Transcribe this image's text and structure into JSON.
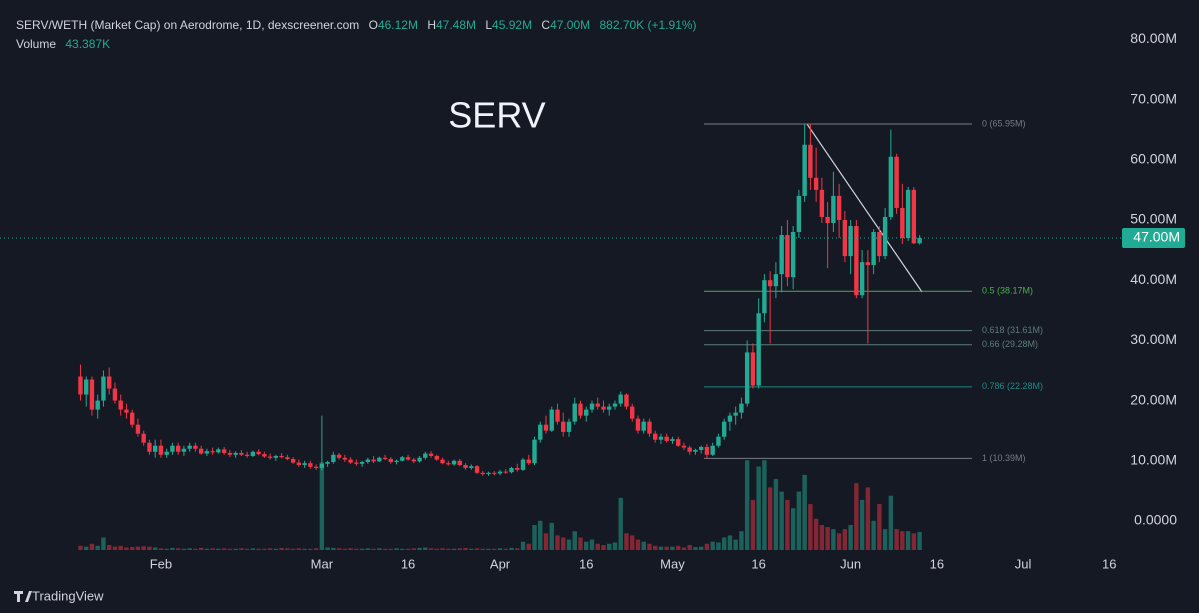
{
  "chart_data": {
    "type": "candlestick",
    "header": {
      "symbol": "SERV/WETH (Market Cap) on Aerodrome, 1D, dexscreener.com",
      "ohlc": [
        {
          "key": "O",
          "value": "46.12M"
        },
        {
          "key": "H",
          "value": "47.48M"
        },
        {
          "key": "L",
          "value": "45.92M"
        },
        {
          "key": "C",
          "value": "47.00M"
        }
      ],
      "change": "882.70K (+1.91%)",
      "volume_label": "Volume",
      "volume_value": "43.387K"
    },
    "watermark": "SERV",
    "brand": "TradingView",
    "up_color": "#22ab94",
    "down_color": "#f23645",
    "ylim": [
      -4.82,
      86.54
    ],
    "yticks": [
      {
        "value": 80,
        "label": "80.00M"
      },
      {
        "value": 70,
        "label": "70.00M"
      },
      {
        "value": 60,
        "label": "60.00M"
      },
      {
        "value": 50,
        "label": "50.00M"
      },
      {
        "value": 40,
        "label": "40.00M"
      },
      {
        "value": 30,
        "label": "30.00M"
      },
      {
        "value": 20,
        "label": "20.00M"
      },
      {
        "value": 10,
        "label": "10.00M"
      },
      {
        "value": 0,
        "label": "0.0000"
      }
    ],
    "xlim": [
      "Jan 4",
      "Jul 17"
    ],
    "xticks": [
      {
        "value": "Feb 1",
        "label": "Feb"
      },
      {
        "value": "Mar 1",
        "label": "Mar"
      },
      {
        "value": "Mar 16",
        "label": "16"
      },
      {
        "value": "Apr 1",
        "label": "Apr"
      },
      {
        "value": "Apr 16",
        "label": "16"
      },
      {
        "value": "May 1",
        "label": "May"
      },
      {
        "value": "May 16",
        "label": "16"
      },
      {
        "value": "Jun 1",
        "label": "Jun"
      },
      {
        "value": "Jun 16",
        "label": "16"
      },
      {
        "value": "Jul 1",
        "label": "Jul"
      },
      {
        "value": "Jul 16",
        "label": "16"
      }
    ],
    "grid": false,
    "volume_lim": [
      0,
      230
    ],
    "last_price": {
      "value": 47.0,
      "label": "47.00M",
      "color": "#22ab94"
    },
    "fib_levels": [
      {
        "label": "0 (65.95M)",
        "value": 65.95,
        "color": "#787b86"
      },
      {
        "label": "0.5 (38.17M)",
        "value": 38.17,
        "color": "#4caf50"
      },
      {
        "label": "0.618 (31.61M)",
        "value": 31.61,
        "color": "#5d7d77"
      },
      {
        "label": "0.66 (29.28M)",
        "value": 29.28,
        "color": "#5d7d77"
      },
      {
        "label": "0.786 (22.28M)",
        "value": 22.28,
        "color": "#1e8a86"
      },
      {
        "label": "1 (10.39M)",
        "value": 10.39,
        "color": "#787b86"
      }
    ],
    "candles": [
      [
        "Jan 18",
        24,
        26,
        20,
        21,
        10
      ],
      [
        "Jan 19",
        21,
        24,
        19,
        23.5,
        8
      ],
      [
        "Jan 20",
        23.5,
        24,
        17.5,
        18.5,
        15
      ],
      [
        "Jan 21",
        18.5,
        21,
        17,
        20,
        10
      ],
      [
        "Jan 22",
        20,
        25,
        19,
        24,
        30
      ],
      [
        "Jan 23",
        24,
        25.5,
        21,
        22,
        12
      ],
      [
        "Jan 24",
        22,
        23,
        19.5,
        20,
        8
      ],
      [
        "Jan 25",
        20,
        21,
        17.5,
        18.5,
        10
      ],
      [
        "Jan 26",
        18.5,
        19.5,
        17,
        18,
        6
      ],
      [
        "Jan 27",
        18,
        18.5,
        15.5,
        16,
        7
      ],
      [
        "Jan 28",
        16,
        17,
        14,
        14.5,
        8
      ],
      [
        "Jan 29",
        14.5,
        15,
        12.5,
        13,
        9
      ],
      [
        "Jan 30",
        13,
        13.5,
        11,
        11.5,
        8
      ],
      [
        "Jan 31",
        11.5,
        13.5,
        10.5,
        12.5,
        6
      ],
      [
        "Feb 1",
        12.5,
        13.5,
        10.5,
        11,
        4
      ],
      [
        "Feb 2",
        11,
        12,
        10.5,
        11.5,
        3
      ],
      [
        "Feb 3",
        11.5,
        13,
        11,
        12.5,
        5
      ],
      [
        "Feb 4",
        12.5,
        13,
        11,
        11.5,
        4
      ],
      [
        "Feb 5",
        11.5,
        12.5,
        10.8,
        12,
        3
      ],
      [
        "Feb 6",
        12,
        13,
        11.5,
        12.5,
        4
      ],
      [
        "Feb 7",
        12.5,
        13,
        11.5,
        12,
        3
      ],
      [
        "Feb 8",
        12,
        12.5,
        11,
        11.2,
        5
      ],
      [
        "Feb 9",
        11.2,
        12,
        10.8,
        11.6,
        3
      ],
      [
        "Feb 10",
        11.6,
        12.2,
        11,
        11.4,
        4
      ],
      [
        "Feb 11",
        11.4,
        12.2,
        11.2,
        11.9,
        3
      ],
      [
        "Feb 12",
        11.9,
        12.3,
        11,
        11.3,
        4
      ],
      [
        "Feb 13",
        11.3,
        11.8,
        10.6,
        11,
        3
      ],
      [
        "Feb 14",
        11,
        11.6,
        10.5,
        11.3,
        3
      ],
      [
        "Feb 15",
        11.3,
        11.8,
        10.8,
        11,
        4
      ],
      [
        "Feb 16",
        11,
        11.5,
        10.5,
        10.8,
        3
      ],
      [
        "Feb 17",
        10.8,
        11.7,
        10.6,
        11.5,
        4
      ],
      [
        "Feb 18",
        11.5,
        11.9,
        10.9,
        11.1,
        3
      ],
      [
        "Feb 19",
        11.1,
        11.5,
        10.5,
        10.7,
        3
      ],
      [
        "Feb 20",
        10.7,
        11.2,
        10.2,
        10.5,
        4
      ],
      [
        "Feb 21",
        10.5,
        11,
        10,
        10.8,
        3
      ],
      [
        "Feb 22",
        10.8,
        11.3,
        10.4,
        10.6,
        5
      ],
      [
        "Feb 23",
        10.6,
        11,
        10.1,
        10.3,
        4
      ],
      [
        "Feb 24",
        10.3,
        10.6,
        9.5,
        9.7,
        3
      ],
      [
        "Feb 25",
        9.7,
        10.2,
        9,
        9.3,
        4
      ],
      [
        "Feb 26",
        9.3,
        10,
        8.8,
        9.6,
        3
      ],
      [
        "Feb 27",
        9.6,
        10,
        8.7,
        9,
        3
      ],
      [
        "Feb 28",
        9,
        9.4,
        8.5,
        8.8,
        4
      ],
      [
        "Mar 1",
        8.8,
        17.5,
        8.4,
        9.5,
        210
      ],
      [
        "Mar 2",
        9.5,
        10,
        9,
        9.8,
        6
      ],
      [
        "Mar 3",
        9.8,
        11.5,
        9.5,
        11,
        5
      ],
      [
        "Mar 4",
        11,
        11.3,
        10.2,
        10.5,
        4
      ],
      [
        "Mar 5",
        10.5,
        11,
        9.8,
        10.2,
        3
      ],
      [
        "Mar 6",
        10.2,
        10.6,
        9.5,
        9.7,
        4
      ],
      [
        "Mar 7",
        9.7,
        10.2,
        9.2,
        9.5,
        3
      ],
      [
        "Mar 8",
        9.5,
        10,
        9,
        9.8,
        3
      ],
      [
        "Mar 9",
        9.8,
        10.5,
        9.5,
        10.2,
        4
      ],
      [
        "Mar 10",
        10.2,
        10.8,
        9.6,
        9.9,
        3
      ],
      [
        "Mar 11",
        9.9,
        10.7,
        9.8,
        10.5,
        4
      ],
      [
        "Mar 12",
        10.5,
        11,
        10.1,
        10.3,
        3
      ],
      [
        "Mar 13",
        10.3,
        10.6,
        9.5,
        9.8,
        3
      ],
      [
        "Mar 14",
        9.8,
        10.2,
        9.4,
        10,
        4
      ],
      [
        "Mar 15",
        10,
        10.8,
        9.9,
        10.6,
        3
      ],
      [
        "Mar 16",
        10.6,
        11,
        10,
        10.2,
        3
      ],
      [
        "Mar 17",
        10.2,
        10.5,
        9.6,
        9.9,
        4
      ],
      [
        "Mar 18",
        9.9,
        10.8,
        9.7,
        10.5,
        5
      ],
      [
        "Mar 19",
        10.5,
        11.5,
        10.2,
        11.2,
        6
      ],
      [
        "Mar 20",
        11.2,
        11.6,
        10.5,
        10.8,
        4
      ],
      [
        "Mar 21",
        10.8,
        11,
        10,
        10.2,
        3
      ],
      [
        "Mar 22",
        10.2,
        10.5,
        9.4,
        9.6,
        4
      ],
      [
        "Mar 23",
        9.6,
        10,
        9.2,
        9.4,
        3
      ],
      [
        "Mar 24",
        9.4,
        10.2,
        9.2,
        10,
        3
      ],
      [
        "Mar 25",
        10,
        10.3,
        9.1,
        9.3,
        4
      ],
      [
        "Mar 26",
        9.3,
        9.6,
        8.5,
        8.8,
        5
      ],
      [
        "Mar 27",
        8.8,
        9.4,
        8.5,
        9.1,
        3
      ],
      [
        "Mar 28",
        9.1,
        9.3,
        7.8,
        8,
        4
      ],
      [
        "Mar 29",
        8,
        8.3,
        7.5,
        7.8,
        3
      ],
      [
        "Mar 30",
        7.8,
        8.2,
        7.5,
        8,
        3
      ],
      [
        "Mar 31",
        8,
        8.3,
        7.6,
        7.9,
        3
      ],
      [
        "Apr 1",
        7.9,
        8.5,
        7.6,
        8.2,
        4
      ],
      [
        "Apr 2",
        8.2,
        8.6,
        7.8,
        8.1,
        3
      ],
      [
        "Apr 3",
        8.1,
        9,
        7.9,
        8.8,
        5
      ],
      [
        "Apr 4",
        8.8,
        9.5,
        8.2,
        8.5,
        4
      ],
      [
        "Apr 5",
        8.5,
        10.5,
        8.3,
        10.2,
        20
      ],
      [
        "Apr 6",
        10.2,
        11,
        9.3,
        9.6,
        15
      ],
      [
        "Apr 7",
        9.6,
        14,
        9.3,
        13.5,
        60
      ],
      [
        "Apr 8",
        13.5,
        16.5,
        13,
        16,
        70
      ],
      [
        "Apr 9",
        16,
        17.5,
        14.5,
        15,
        40
      ],
      [
        "Apr 10",
        15,
        19,
        14.8,
        18.5,
        65
      ],
      [
        "Apr 11",
        18.5,
        19.5,
        16,
        16.5,
        35
      ],
      [
        "Apr 12",
        16.5,
        18,
        14,
        14.8,
        30
      ],
      [
        "Apr 13",
        14.8,
        17,
        14,
        16.5,
        25
      ],
      [
        "Apr 14",
        16.5,
        20.5,
        16,
        19.5,
        45
      ],
      [
        "Apr 15",
        19.5,
        20,
        17,
        17.5,
        30
      ],
      [
        "Apr 16",
        17.5,
        19,
        16.5,
        18.5,
        20
      ],
      [
        "Apr 17",
        18.5,
        20,
        18,
        19.5,
        25
      ],
      [
        "Apr 18",
        19.5,
        20.5,
        18.5,
        19,
        15
      ],
      [
        "Apr 19",
        19,
        20,
        18,
        18.5,
        12
      ],
      [
        "Apr 20",
        18.5,
        19.5,
        17.5,
        19,
        15
      ],
      [
        "Apr 21",
        19,
        20,
        18.5,
        19.5,
        18
      ],
      [
        "Apr 22",
        19.5,
        21.5,
        19,
        21,
        125
      ],
      [
        "Apr 23",
        21,
        21.2,
        18.5,
        19,
        40
      ],
      [
        "Apr 24",
        19,
        19.5,
        16.5,
        17,
        35
      ],
      [
        "Apr 25",
        17,
        17.5,
        14.5,
        15,
        25
      ],
      [
        "Apr 26",
        15,
        17,
        14.5,
        16.5,
        20
      ],
      [
        "Apr 27",
        16.5,
        17,
        14,
        14.5,
        15
      ],
      [
        "Apr 28",
        14.5,
        15,
        13,
        13.5,
        10
      ],
      [
        "Apr 29",
        13.5,
        14.5,
        12.8,
        14,
        8
      ],
      [
        "Apr 30",
        14,
        14.5,
        13,
        13.3,
        8
      ],
      [
        "May 1",
        13.3,
        14,
        12.8,
        13.6,
        8
      ],
      [
        "May 2",
        13.6,
        14,
        12.3,
        12.5,
        10
      ],
      [
        "May 3",
        12.5,
        13,
        11.8,
        12.2,
        6
      ],
      [
        "May 4",
        12.2,
        12.5,
        11,
        11.5,
        12
      ],
      [
        "May 5",
        11.5,
        12,
        11,
        11.8,
        7
      ],
      [
        "May 6",
        11.8,
        12.5,
        11.2,
        12.3,
        8
      ],
      [
        "May 7",
        12.3,
        12.8,
        10.4,
        11,
        15
      ],
      [
        "May 8",
        11,
        13,
        10.8,
        12.5,
        20
      ],
      [
        "May 9",
        12.5,
        14.5,
        12.2,
        14,
        18
      ],
      [
        "May 10",
        14,
        17,
        13.5,
        16.5,
        30
      ],
      [
        "May 11",
        16.5,
        18,
        15,
        17.5,
        35
      ],
      [
        "May 12",
        17.5,
        19,
        16,
        18,
        25
      ],
      [
        "May 13",
        18,
        20.5,
        17,
        19.5,
        45
      ],
      [
        "May 14",
        19.5,
        30,
        19,
        28,
        215
      ],
      [
        "May 15",
        28,
        29.5,
        22,
        22.5,
        120
      ],
      [
        "May 16",
        22.5,
        37,
        22,
        34.5,
        200
      ],
      [
        "May 17",
        34.5,
        41,
        33,
        40,
        215
      ],
      [
        "May 18",
        40,
        41.5,
        29.5,
        39,
        150
      ],
      [
        "May 19",
        39,
        43,
        37,
        41,
        170
      ],
      [
        "May 20",
        41,
        49,
        38,
        47.5,
        140
      ],
      [
        "May 21",
        47.5,
        50,
        39,
        40.5,
        120
      ],
      [
        "May 22",
        40.5,
        49,
        38.5,
        48,
        100
      ],
      [
        "May 23",
        48,
        55,
        47,
        54,
        140
      ],
      [
        "May 24",
        54,
        66,
        53,
        62.5,
        180
      ],
      [
        "May 25",
        62.5,
        66,
        55,
        57,
        110
      ],
      [
        "May 26",
        57,
        62,
        53,
        55,
        75
      ],
      [
        "May 27",
        55,
        57,
        49.5,
        50.5,
        60
      ],
      [
        "May 28",
        50.5,
        53,
        42,
        49.5,
        55
      ],
      [
        "May 29",
        49.5,
        58,
        48,
        54,
        50
      ],
      [
        "May 30",
        54,
        56,
        47,
        50,
        40
      ],
      [
        "May 31",
        50,
        51.5,
        43,
        44,
        50
      ],
      [
        "Jun 1",
        44,
        50,
        41,
        49,
        60
      ],
      [
        "Jun 2",
        49,
        50,
        37,
        37.5,
        160
      ],
      [
        "Jun 3",
        37.5,
        45,
        37,
        43,
        120
      ],
      [
        "Jun 4",
        43,
        45,
        29.5,
        42.5,
        150
      ],
      [
        "Jun 5",
        42.5,
        48.5,
        41,
        48,
        70
      ],
      [
        "Jun 6",
        48,
        49,
        43,
        44,
        110
      ],
      [
        "Jun 7",
        44,
        52,
        43.5,
        50.5,
        50
      ],
      [
        "Jun 8",
        50.5,
        65,
        50,
        60.5,
        130
      ],
      [
        "Jun 9",
        60.5,
        61,
        51,
        52,
        50
      ],
      [
        "Jun 10",
        52,
        56,
        46,
        47,
        45
      ],
      [
        "Jun 11",
        47,
        55.5,
        46.5,
        55,
        45
      ],
      [
        "Jun 12",
        55,
        55.5,
        46,
        46.12,
        40
      ],
      [
        "Jun 13",
        46.12,
        47.48,
        45.92,
        47.0,
        43.387
      ]
    ]
  }
}
